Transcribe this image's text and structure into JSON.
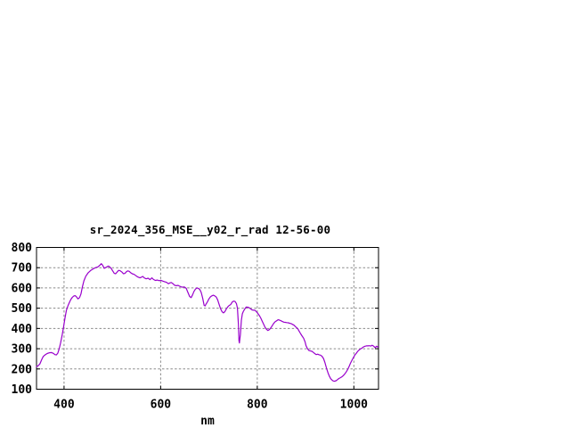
{
  "chart_data": {
    "type": "line",
    "title": "sr_2024_356_MSE__y02_r_rad 12-56-00",
    "xlabel": "nm",
    "ylabel": "",
    "xlim": [
      343,
      1051
    ],
    "ylim": [
      100,
      800
    ],
    "xticks": [
      400,
      600,
      800,
      1000
    ],
    "yticks": [
      100,
      200,
      300,
      400,
      500,
      600,
      700,
      800
    ],
    "grid": true,
    "legend": false,
    "line_color": "#9900cc",
    "grid_color": "#8a8a8a",
    "background_color": "#ffffff",
    "series": [
      {
        "name": "sr_2024_356_MSE__y02_r_rad",
        "x": [
          343,
          346,
          350,
          354,
          357,
          361,
          365,
          370,
          374,
          378,
          381,
          384,
          387,
          390,
          393,
          396,
          399,
          402,
          405,
          408,
          411,
          414,
          417,
          420,
          423,
          426,
          429,
          432,
          435,
          438,
          441,
          445,
          450,
          455,
          460,
          465,
          470,
          474,
          477,
          480,
          483,
          486,
          489,
          492,
          495,
          498,
          501,
          504,
          507,
          510,
          513,
          516,
          520,
          523,
          526,
          529,
          532,
          535,
          538,
          541,
          545,
          549,
          553,
          557,
          560,
          563,
          566,
          570,
          574,
          578,
          582,
          585,
          589,
          593,
          597,
          600,
          604,
          608,
          612,
          616,
          619,
          622,
          626,
          629,
          633,
          636,
          639,
          643,
          646,
          649,
          653,
          656,
          660,
          663,
          666,
          669,
          672,
          675,
          678,
          681,
          684,
          687,
          690,
          692,
          694,
          697,
          700,
          703,
          706,
          709,
          712,
          715,
          718,
          721,
          724,
          727,
          730,
          733,
          736,
          739,
          742,
          745,
          748,
          751,
          754,
          757,
          759,
          761,
          762,
          763,
          765,
          767,
          769,
          771,
          774,
          777,
          780,
          783,
          786,
          789,
          792,
          795,
          798,
          801,
          804,
          807,
          810,
          813,
          816,
          819,
          822,
          825,
          828,
          831,
          834,
          837,
          840,
          843,
          846,
          849,
          852,
          855,
          858,
          861,
          864,
          867,
          870,
          873,
          876,
          879,
          882,
          884,
          887,
          890,
          893,
          896,
          899,
          901,
          904,
          907,
          910,
          913,
          916,
          919,
          922,
          925,
          928,
          931,
          934,
          937,
          940,
          943,
          946,
          949,
          952,
          955,
          957,
          960,
          963,
          966,
          969,
          972,
          975,
          978,
          981,
          984,
          987,
          990,
          993,
          996,
          999,
          1002,
          1005,
          1008,
          1011,
          1014,
          1017,
          1020,
          1023,
          1026,
          1029,
          1032,
          1035,
          1038,
          1041,
          1044,
          1047,
          1050
        ],
        "y": [
          212,
          215,
          225,
          248,
          262,
          270,
          276,
          280,
          281,
          277,
          271,
          269,
          278,
          300,
          330,
          365,
          408,
          452,
          490,
          512,
          528,
          543,
          553,
          560,
          562,
          555,
          546,
          552,
          570,
          605,
          635,
          658,
          675,
          686,
          694,
          700,
          704,
          712,
          720,
          712,
          697,
          700,
          705,
          708,
          703,
          695,
          683,
          672,
          670,
          679,
          687,
          685,
          678,
          670,
          672,
          680,
          684,
          682,
          675,
          670,
          667,
          660,
          654,
          650,
          653,
          657,
          650,
          645,
          648,
          641,
          650,
          642,
          637,
          639,
          636,
          638,
          634,
          631,
          628,
          621,
          625,
          627,
          620,
          613,
          611,
          613,
          609,
          605,
          604,
          605,
          598,
          580,
          558,
          552,
          566,
          583,
          594,
          600,
          598,
          592,
          578,
          549,
          514,
          511,
          521,
          532,
          546,
          556,
          561,
          564,
          561,
          555,
          541,
          519,
          498,
          483,
          477,
          483,
          497,
          507,
          514,
          518,
          530,
          535,
          533,
          522,
          500,
          420,
          340,
          328,
          370,
          440,
          472,
          483,
          496,
          506,
          505,
          503,
          497,
          492,
          490,
          490,
          483,
          475,
          465,
          452,
          437,
          422,
          407,
          396,
          390,
          394,
          403,
          414,
          425,
          433,
          438,
          443,
          441,
          438,
          434,
          431,
          430,
          429,
          428,
          426,
          424,
          420,
          416,
          409,
          403,
          398,
          385,
          373,
          362,
          352,
          333,
          315,
          300,
          291,
          289,
          287,
          282,
          276,
          271,
          273,
          270,
          268,
          263,
          252,
          232,
          207,
          183,
          165,
          152,
          145,
          141,
          139,
          142,
          147,
          153,
          157,
          161,
          167,
          175,
          185,
          197,
          212,
          228,
          243,
          256,
          268,
          278,
          287,
          294,
          299,
          304,
          309,
          312,
          314,
          314,
          315,
          313,
          317,
          312,
          305,
          312,
          308
        ]
      }
    ]
  }
}
